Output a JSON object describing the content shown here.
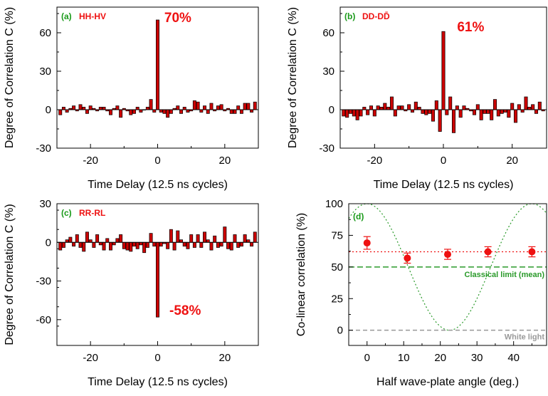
{
  "colors": {
    "bar_fill": "#cc0000",
    "bar_edge": "#000000",
    "label_green": "#1a9a1a",
    "label_red": "#ee1111",
    "marker": "#ee1111",
    "cos_curve": "#2a9a2a",
    "classical": "#2a9a2a",
    "white": "#999999"
  },
  "chart_data": [
    {
      "type": "bar",
      "panel": "(a)",
      "label": "HH-HV",
      "percent_label": "70%",
      "xlabel": "Time Delay (12.5 ns cycles)",
      "ylabel": "Degree of Correlation C (%)",
      "xlim": [
        -30,
        30
      ],
      "ylim": [
        -30,
        80
      ],
      "xticks": [
        -20,
        0,
        20
      ],
      "yticks": [
        -30,
        0,
        30,
        60
      ],
      "x": [
        -29,
        -28,
        -27,
        -26,
        -25,
        -24,
        -23,
        -22,
        -21,
        -20,
        -19,
        -18,
        -17,
        -16,
        -15,
        -14,
        -13,
        -12,
        -11,
        -10,
        -9,
        -8,
        -7,
        -6,
        -5,
        -4,
        -3,
        -2,
        -1,
        0,
        1,
        2,
        3,
        4,
        5,
        6,
        7,
        8,
        9,
        10,
        11,
        12,
        13,
        14,
        15,
        16,
        17,
        18,
        19,
        20,
        21,
        22,
        23,
        24,
        25,
        26,
        27,
        28,
        29
      ],
      "values": [
        -4,
        2,
        -2,
        1,
        3,
        -1,
        4,
        2,
        -3,
        3,
        1,
        -1,
        2,
        2,
        -1,
        -4,
        1,
        3,
        -6,
        1,
        -1,
        -4,
        -3,
        2,
        -2,
        0,
        2,
        8,
        -2,
        70,
        -2,
        -3,
        -6,
        -3,
        1,
        3,
        -3,
        2,
        -2,
        -1,
        7,
        6,
        -2,
        3,
        -3,
        5,
        -1,
        3,
        4,
        -1,
        1,
        -3,
        -3,
        3,
        -3,
        5,
        5,
        -2,
        6
      ]
    },
    {
      "type": "bar",
      "panel": "(b)",
      "label": "DD-DD̄",
      "percent_label": "61%",
      "xlabel": "Time Delay (12.5 ns cycles)",
      "ylabel": "Degree of Correlation C (%)",
      "xlim": [
        -30,
        30
      ],
      "ylim": [
        -30,
        80
      ],
      "xticks": [
        -20,
        0,
        20
      ],
      "yticks": [
        -30,
        0,
        30,
        60
      ],
      "x": [
        -29,
        -28,
        -27,
        -26,
        -25,
        -24,
        -23,
        -22,
        -21,
        -20,
        -19,
        -18,
        -17,
        -16,
        -15,
        -14,
        -13,
        -12,
        -11,
        -10,
        -9,
        -8,
        -7,
        -6,
        -5,
        -4,
        -3,
        -2,
        -1,
        0,
        1,
        2,
        3,
        4,
        5,
        6,
        7,
        8,
        9,
        10,
        11,
        12,
        13,
        14,
        15,
        16,
        17,
        18,
        19,
        20,
        21,
        22,
        23,
        24,
        25,
        26,
        27,
        28,
        29
      ],
      "values": [
        -5,
        -6,
        -3,
        -5,
        -8,
        -5,
        2,
        -4,
        3,
        -5,
        3,
        2,
        5,
        2,
        10,
        -5,
        3,
        3,
        -1,
        4,
        -2,
        6,
        2,
        -3,
        -4,
        -3,
        -9,
        7,
        -17,
        61,
        -4,
        10,
        -18,
        3,
        -6,
        3,
        1,
        -1,
        -4,
        4,
        -8,
        -3,
        -3,
        -8,
        8,
        -5,
        -3,
        -2,
        -6,
        5,
        -10,
        4,
        -2,
        10,
        2,
        4,
        -3,
        6,
        -1
      ]
    },
    {
      "type": "bar",
      "panel": "(c)",
      "label": "RR-RL",
      "percent_label": "-58%",
      "xlabel": "Time Delay (12.5 ns cycles)",
      "ylabel": "Degree of Correlation C (%)",
      "xlim": [
        -30,
        30
      ],
      "ylim": [
        -80,
        30
      ],
      "xticks": [
        -20,
        0,
        20
      ],
      "yticks": [
        -60,
        -30,
        0,
        30
      ],
      "x": [
        -29,
        -28,
        -27,
        -26,
        -25,
        -24,
        -23,
        -22,
        -21,
        -20,
        -19,
        -18,
        -17,
        -16,
        -15,
        -14,
        -13,
        -12,
        -11,
        -10,
        -9,
        -8,
        -7,
        -6,
        -5,
        -4,
        -3,
        -2,
        -1,
        0,
        1,
        2,
        3,
        4,
        5,
        6,
        7,
        8,
        9,
        10,
        11,
        12,
        13,
        14,
        15,
        16,
        17,
        18,
        19,
        20,
        21,
        22,
        23,
        24,
        25,
        26,
        27,
        28,
        29
      ],
      "values": [
        -6,
        -4,
        2,
        4,
        -3,
        6,
        -4,
        -7,
        8,
        2,
        -4,
        6,
        -2,
        -6,
        3,
        -6,
        -2,
        3,
        6,
        -5,
        -6,
        -7,
        -3,
        -5,
        -2,
        -8,
        -4,
        7,
        -3,
        -58,
        -3,
        -1,
        -5,
        10,
        -6,
        9,
        2,
        -3,
        -5,
        6,
        -4,
        6,
        -4,
        8,
        2,
        -6,
        5,
        -4,
        -3,
        12,
        -5,
        -6,
        6,
        -4,
        -3,
        6,
        2,
        -3,
        8
      ]
    },
    {
      "type": "scatter",
      "panel": "(d)",
      "xlabel": "Half wave-plate angle (deg.)",
      "ylabel": "Co-linear correlation (%)",
      "xlim": [
        -5,
        49
      ],
      "ylim": [
        -12,
        100
      ],
      "xticks": [
        0,
        10,
        20,
        30,
        40
      ],
      "yticks": [
        0,
        25,
        50,
        75,
        100
      ],
      "points": {
        "x": [
          0,
          11,
          22,
          33,
          45
        ],
        "y": [
          69,
          57,
          60,
          62,
          62
        ],
        "yerr": [
          5,
          4,
          4,
          4,
          4
        ]
      },
      "mean_line": 62,
      "classical_line": 50,
      "classical_label": "Classical limit (mean)",
      "white_line": 0,
      "white_label": "White light",
      "cos_curve": {
        "amplitude": 50,
        "offset": 50,
        "period_deg": 45,
        "phase_deg": 0
      }
    }
  ]
}
